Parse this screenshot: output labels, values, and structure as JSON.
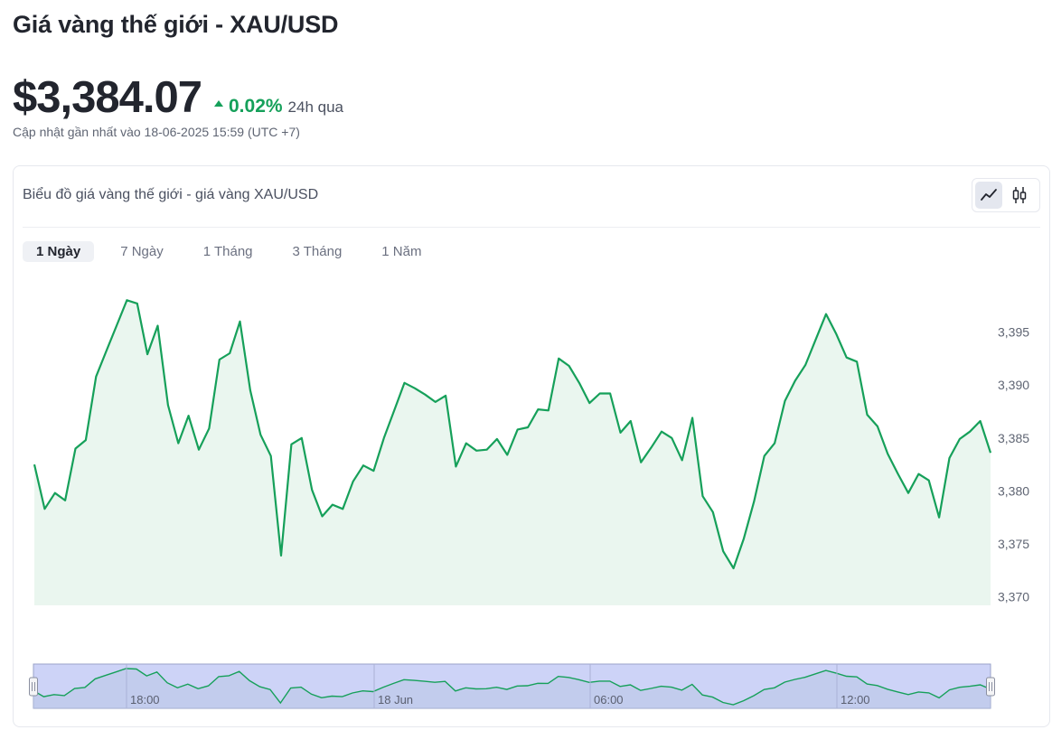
{
  "header": {
    "title": "Giá vàng thế giới - XAU/USD",
    "price": "$3,384.07",
    "change_pct": "0.02%",
    "change_period": "24h qua",
    "updated": "Cập nhật gần nhất vào 18-06-2025 15:59 (UTC +7)"
  },
  "card": {
    "title": "Biểu đồ giá vàng thế giới - giá vàng XAU/USD",
    "chart_type_buttons": [
      {
        "name": "line-chart",
        "icon": "line-chart-icon",
        "active": true
      },
      {
        "name": "candlestick-chart",
        "icon": "candlestick-icon",
        "active": false
      }
    ],
    "range_tabs": [
      {
        "label": "1 Ngày",
        "active": true
      },
      {
        "label": "7 Ngày",
        "active": false
      },
      {
        "label": "1 Tháng",
        "active": false
      },
      {
        "label": "3 Tháng",
        "active": false
      },
      {
        "label": "1 Năm",
        "active": false
      }
    ]
  },
  "colors": {
    "line": "#16a05a",
    "area": "#eaf6ef",
    "positive": "#15a05a",
    "navigator_fill": "#cdd3f7"
  },
  "chart_data": {
    "type": "area",
    "ylabel": "",
    "ylim": [
      3369.2,
      3400.5
    ],
    "yticks": [
      3395,
      3390,
      3385,
      3380,
      3375,
      3370
    ],
    "ytick_labels": [
      "3,395",
      "3,390",
      "3,385",
      "3,380",
      "3,375",
      "3,370"
    ],
    "grid": false,
    "navigator_labels": [
      "18:00",
      "18 Jun",
      "06:00",
      "12:00"
    ],
    "series": [
      {
        "values": [
          3382.5,
          3378.3,
          3379.8,
          3379.1,
          3384.0,
          3384.8,
          3390.8,
          3393.2,
          3395.6,
          3398.0,
          3397.7,
          3392.9,
          3395.6,
          3388.1,
          3384.5,
          3387.1,
          3383.9,
          3385.9,
          3392.4,
          3393.0,
          3396.0,
          3389.5,
          3385.3,
          3383.3,
          3373.9,
          3384.4,
          3385.0,
          3380.1,
          3377.6,
          3378.7,
          3378.3,
          3380.9,
          3382.4,
          3381.9,
          3385.0,
          3387.6,
          3390.2,
          3389.7,
          3389.1,
          3388.4,
          3389.0,
          3382.3,
          3384.5,
          3383.8,
          3383.9,
          3384.9,
          3383.4,
          3385.8,
          3386.0,
          3387.7,
          3387.6,
          3392.5,
          3391.8,
          3390.2,
          3388.3,
          3389.2,
          3389.2,
          3385.5,
          3386.6,
          3382.7,
          3384.1,
          3385.6,
          3385.0,
          3382.9,
          3386.9,
          3379.5,
          3378.0,
          3374.3,
          3372.7,
          3375.5,
          3379.0,
          3383.3,
          3384.5,
          3388.5,
          3390.4,
          3391.9,
          3394.3,
          3396.7,
          3394.8,
          3392.6,
          3392.2,
          3387.2,
          3386.1,
          3383.5,
          3381.6,
          3379.8,
          3381.6,
          3381.0,
          3377.5,
          3383.1,
          3384.9,
          3385.6,
          3386.6,
          3383.6
        ]
      }
    ]
  }
}
